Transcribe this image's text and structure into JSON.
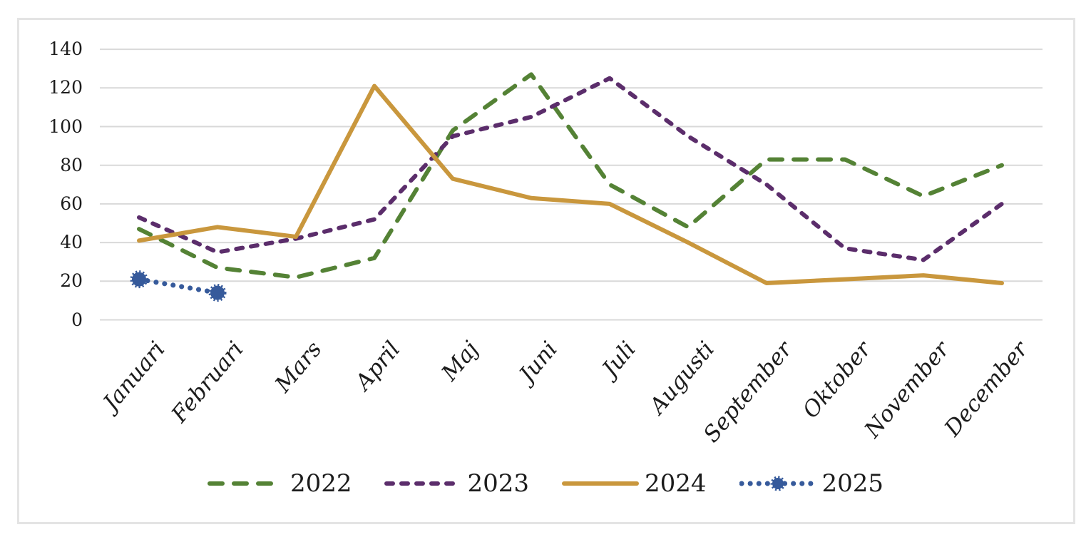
{
  "chart_data": {
    "type": "line",
    "title": "",
    "xlabel": "",
    "ylabel": "",
    "categories": [
      "Januari",
      "Februari",
      "Mars",
      "April",
      "Maj",
      "Juni",
      "Juli",
      "Augusti",
      "September",
      "Oktober",
      "November",
      "December"
    ],
    "y_ticks": [
      0,
      20,
      40,
      60,
      80,
      100,
      120,
      140
    ],
    "ylim": [
      0,
      140
    ],
    "grid": true,
    "legend_position": "bottom",
    "series": [
      {
        "name": "2022",
        "color": "#548235",
        "style": "long-dash",
        "values": [
          47,
          27,
          22,
          32,
          98,
          127,
          70,
          48,
          83,
          83,
          64,
          80
        ]
      },
      {
        "name": "2023",
        "color": "#5B2D6B",
        "style": "dash",
        "values": [
          53,
          35,
          42,
          52,
          95,
          105,
          125,
          95,
          70,
          37,
          31,
          60
        ]
      },
      {
        "name": "2024",
        "color": "#C9973D",
        "style": "solid",
        "values": [
          41,
          48,
          43,
          121,
          73,
          63,
          60,
          40,
          19,
          21,
          23,
          19
        ]
      },
      {
        "name": "2025",
        "color": "#365A9B",
        "style": "dot",
        "marker": "star",
        "values": [
          21,
          14
        ]
      }
    ]
  },
  "frame": {
    "background": "#FFFFFF",
    "border_color": "#E4E4E4",
    "grid_color": "#D9D9D9",
    "text_color": "#1C1C1C"
  }
}
